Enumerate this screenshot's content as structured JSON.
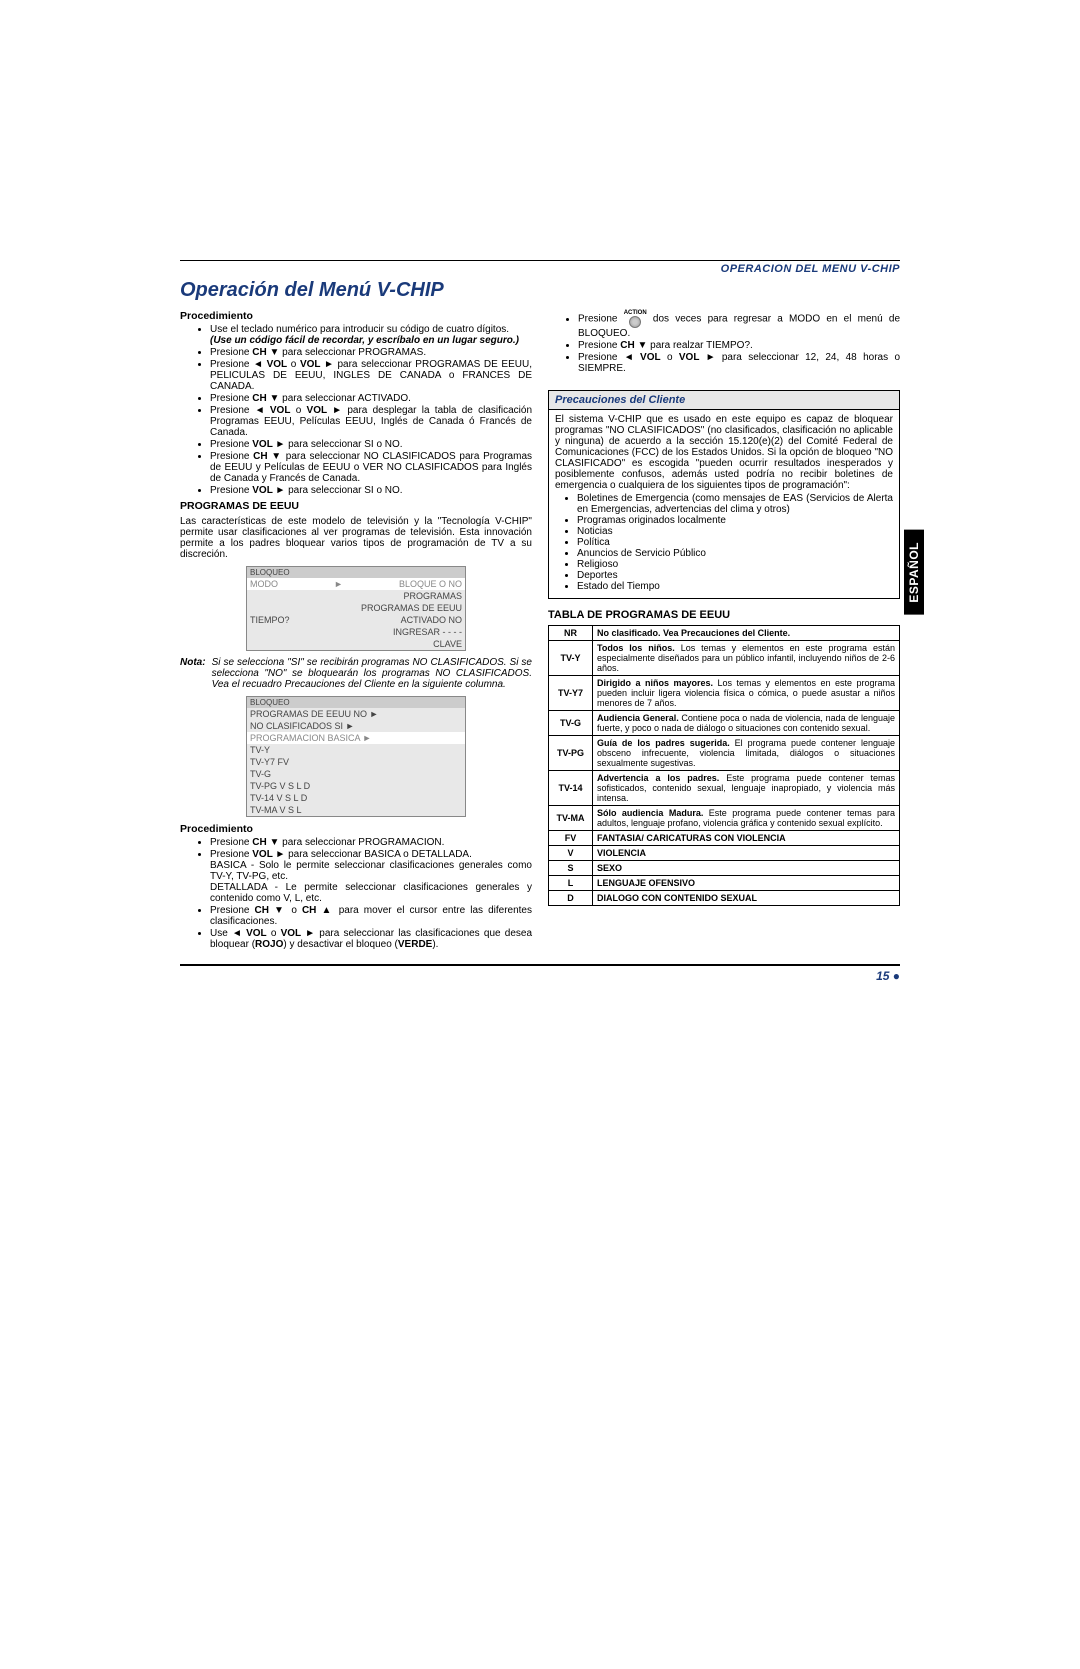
{
  "sideTab": "ESPAÑOL",
  "header": "OPERACION DEL MENU V-CHIP",
  "title": "Operación del Menú V-CHIP",
  "pageNumber": "15 ●",
  "left": {
    "heading1": "Procedimiento",
    "b1": "Use el teclado numérico para introducir su código de cuatro dígitos.",
    "b1b": "(Use un código fácil de recordar, y escríbalo en un lugar seguro.)",
    "b2a": "Presione ",
    "b2b": "CH ▼",
    "b2c": " para seleccionar PROGRAMAS.",
    "b3a": "Presione ",
    "b3b": "◄ VOL",
    "b3c": " o ",
    "b3d": "VOL ►",
    "b3e": " para seleccionar PROGRAMAS DE EEUU, PELICULAS DE EEUU, INGLES DE CANADA o FRANCES DE CANADA.",
    "b4a": "Presione ",
    "b4b": "CH ▼",
    "b4c": " para seleccionar ACTIVADO.",
    "b5a": "Presione ",
    "b5b": "◄ VOL",
    "b5c": " o ",
    "b5d": "VOL ►",
    "b5e": " para desplegar la tabla de clasificación Programas EEUU, Películas EEUU, Inglés de Canada ó Francés de Canada.",
    "b6a": "Presione ",
    "b6b": "VOL ►",
    "b6c": " para seleccionar SI o NO.",
    "b7a": "Presione ",
    "b7b": "CH ▼",
    "b7c": "  para seleccionar NO CLASIFICADOS para Programas de EEUU y Películas de EEUU o VER NO CLASIFICADOS para Inglés de Canada y Francés de Canada.",
    "b8a": "Presione ",
    "b8b": "VOL ►",
    "b8c": " para seleccionar SI o NO.",
    "heading2": "PROGRAMAS DE EEUU",
    "para1": "Las características de este modelo de televisión y la \"Tecnología V-CHIP\" permite usar clasificaciones al ver programas de televisión. Esta innovación permite a los padres bloquear varios tipos de programación de TV a su discreción.",
    "menu1": {
      "hdr": "BLOQUEO",
      "r1l": "MODO",
      "r1r": "BLOQUE O         NO",
      "r2l": "",
      "r2r": "PROGRAMAS",
      "r3l": "",
      "r3r": "PROGRAMAS DE EEUU",
      "r4l": "TIEMPO?",
      "r4r": "ACTIVADO        NO",
      "r5l": "",
      "r5r": "INGRESAR  - - - -",
      "r6l": "",
      "r6r": "CLAVE"
    },
    "notaLabel": "Nota:",
    "notaText": "Si se selecciona \"SI\" se recibirán programas NO CLASIFICADOS. Si se selecciona \"NO\" se bloquearán los programas NO CLASIFICADOS. Vea el recuadro Precauciones del Cliente en la siguiente columna.",
    "menu2": {
      "hdr": "BLOQUEO",
      "r1": "PROGRAMAS DE EEUU    NO ►",
      "r2": "NO CLASIFICADOS        SI ►",
      "r3": "PROGRAMACION    BASICA ►",
      "r4": "TV-Y",
      "r5": "TV-Y7   FV",
      "r6": "TV-G",
      "r7": "TV-PG   V  S  L  D",
      "r8": "TV-14   V  S  L  D",
      "r9": "TV-MA  V  S  L"
    },
    "heading3": "Procedimiento",
    "c1a": "Presione ",
    "c1b": "CH ▼",
    "c1c": "  para seleccionar PROGRAMACION.",
    "c2a": "Presione ",
    "c2b": "VOL ►",
    "c2c": "  para seleccionar BASICA o DETALLADA.",
    "c2d": "BASICA - Solo le permite seleccionar clasificaciones generales como TV-Y, TV-PG, etc.",
    "c2e": "DETALLADA - Le permite seleccionar clasificaciones generales y contenido como V, L, etc.",
    "c3a": "Presione ",
    "c3b": "CH ▼",
    "c3c": " o ",
    "c3d": "CH ▲",
    "c3e": " para mover el cursor entre las diferentes clasificaciones.",
    "c4a": "Use ",
    "c4b": "◄ VOL",
    "c4c": " o ",
    "c4d": "VOL ►",
    "c4e": " para seleccionar las clasificaciones que desea bloquear (",
    "c4f": "ROJO",
    "c4g": ") y desactivar el bloqueo (",
    "c4h": "VERDE",
    "c4i": ")."
  },
  "right": {
    "d1a": "Presione ",
    "d1b": "ACTION",
    "d1c": "  dos veces para regresar a MODO en el menú de BLOQUEO.",
    "d2a": "Presione ",
    "d2b": "CH ▼",
    "d2c": " para realzar TIEMPO?.",
    "d3a": "Presione ",
    "d3b": "◄ VOL",
    "d3c": " o ",
    "d3d": "VOL ►",
    "d3e": " para seleccionar 12, 24, 48 horas o SIEMPRE.",
    "precauTitle": "Precauciones del Cliente",
    "precauBody": "El sistema V-CHIP que es usado en este equipo es capaz de bloquear programas \"NO CLASIFICADOS\" (no clasificados, clasificación no aplicable y ninguna) de acuerdo a la sección 15.120(e)(2) del Comité Federal de Comunicaciones (FCC) de los Estados Unidos. Si la opción de bloqueo \"NO CLASIFICADO\" es escogida \"pueden ocurrir resultados inesperados y posiblemente confusos, además usted podría no recibir boletines de emergencia o cualquiera de los siguientes tipos de programación\":",
    "pb1": "Boletines de Emergencia (como mensajes de EAS (Servicios de Alerta en Emergencias, advertencias del clima y otros)",
    "pb2": "Programas originados localmente",
    "pb3": "Noticias",
    "pb4": "Política",
    "pb5": "Anuncios de Servicio Público",
    "pb6": "Religioso",
    "pb7": "Deportes",
    "pb8": "Estado del Tiempo",
    "ratingsHead": "TABLA DE PROGRAMAS DE EEUU",
    "ratings": [
      {
        "code": "NR",
        "b": "No clasificado. Vea Precauciones del Cliente.",
        "t": ""
      },
      {
        "code": "TV-Y",
        "b": "Todos los niños.",
        "t": " Los temas y elementos en este programa están especialmente diseñados para un público infantil, incluyendo niños de 2-6 años."
      },
      {
        "code": "TV-Y7",
        "b": "Dirigido a niños mayores.",
        "t": " Los temas y elementos en este programa pueden incluir ligera violencia física o cómica, o puede asustar a niños menores de 7 años."
      },
      {
        "code": "TV-G",
        "b": "Audiencia General.",
        "t": " Contiene poca o nada de violencia, nada de lenguaje fuerte, y poco o nada de diálogo o situaciones con contenido sexual."
      },
      {
        "code": "TV-PG",
        "b": "Guía de los padres sugerida.",
        "t": " El programa puede contener lenguaje obsceno infrecuente, violencia limitada, diálogos o situaciones sexualmente sugestivas."
      },
      {
        "code": "TV-14",
        "b": "Advertencia a los padres.",
        "t": " Este programa puede contener temas sofisticados, contenido sexual, lenguaje inapropiado, y violencia más intensa."
      },
      {
        "code": "TV-MA",
        "b": "Sólo audiencia Madura.",
        "t": " Este programa puede contener temas para adultos, lenguaje profano, violencia gráfica y contenido sexual explícito."
      },
      {
        "code": "FV",
        "b": "FANTASIA/ CARICATURAS CON VIOLENCIA",
        "t": ""
      },
      {
        "code": "V",
        "b": "VIOLENCIA",
        "t": ""
      },
      {
        "code": "S",
        "b": "SEXO",
        "t": ""
      },
      {
        "code": "L",
        "b": "LENGUAJE OFENSIVO",
        "t": ""
      },
      {
        "code": "D",
        "b": "DIALOGO CON CONTENIDO SEXUAL",
        "t": ""
      }
    ]
  }
}
